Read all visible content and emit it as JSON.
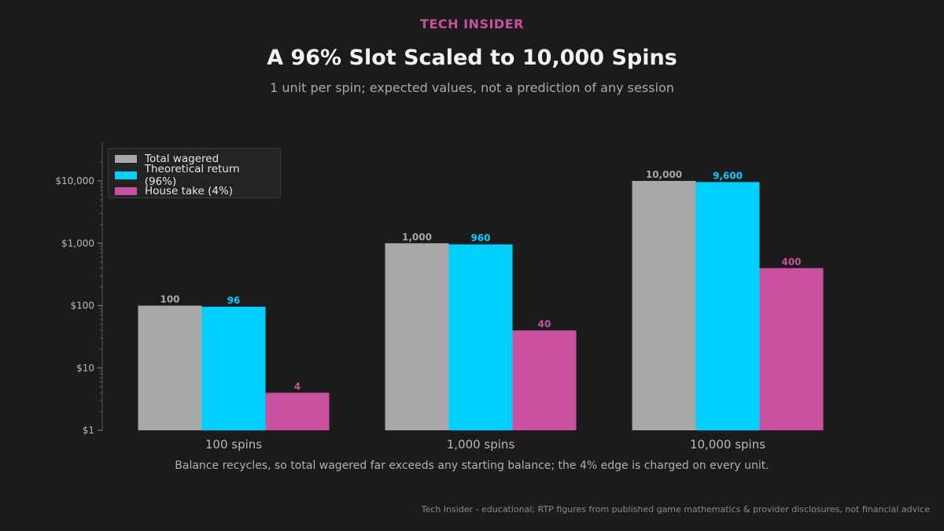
{
  "header": {
    "brand": "TECH INSIDER",
    "title": "A 96% Slot Scaled to 10,000 Spins",
    "subtitle": "1 unit per spin; expected values, not a prediction of any session"
  },
  "note": "Balance recycles, so total wagered far exceeds any starting balance; the 4% edge is charged on every unit.",
  "footer": "Tech Insider - educational; RTP figures from published game mathematics & provider disclosures, not financial advice",
  "colors": {
    "background": "#1b1b1b",
    "wagered": "#a8a8a8",
    "return": "#00d0ff",
    "house": "#c9509f",
    "axis_text": "#b8b8b8"
  },
  "chart_data": {
    "type": "bar",
    "y_scale": "log",
    "ylim": [
      1,
      20000
    ],
    "yticks": [
      1,
      10,
      100,
      1000,
      10000
    ],
    "ytick_labels": [
      "$1",
      "$10",
      "$100",
      "$1,000",
      "$10,000"
    ],
    "categories": [
      "100 spins",
      "1,000 spins",
      "10,000 spins"
    ],
    "series": [
      {
        "name": "Total wagered",
        "values": [
          100,
          1000,
          10000
        ],
        "labels": [
          "100",
          "1,000",
          "10,000"
        ],
        "color": "#a8a8a8"
      },
      {
        "name": "Theoretical return (96%)",
        "values": [
          96,
          960,
          9600
        ],
        "labels": [
          "96",
          "960",
          "9,600"
        ],
        "color": "#00d0ff"
      },
      {
        "name": "House take (4%)",
        "values": [
          4,
          40,
          400
        ],
        "labels": [
          "4",
          "40",
          "400"
        ],
        "color": "#c9509f"
      }
    ],
    "legend_position": "top-left",
    "grid": false
  }
}
